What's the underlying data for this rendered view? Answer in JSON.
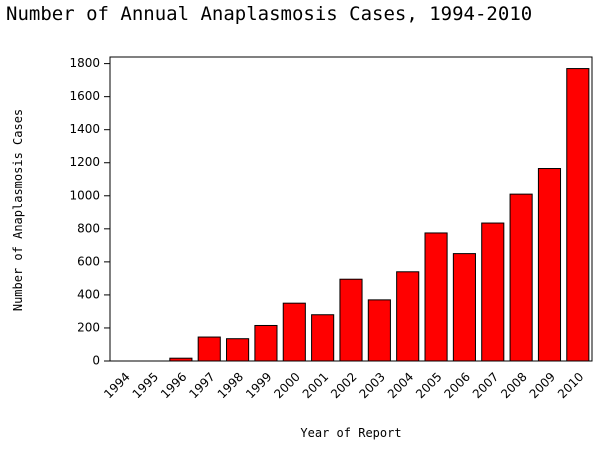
{
  "chart_data": {
    "type": "bar",
    "title": "Number of Annual Anaplasmosis Cases, 1994-2010",
    "x_label": "Year of Report",
    "y_label": "Number of Anaplasmosis Cases",
    "categories": [
      "1994",
      "1995",
      "1996",
      "1997",
      "1998",
      "1999",
      "2000",
      "2001",
      "2002",
      "2003",
      "2004",
      "2005",
      "2006",
      "2007",
      "2008",
      "2009",
      "2010"
    ],
    "values": [
      0,
      0,
      17,
      145,
      135,
      215,
      350,
      280,
      495,
      370,
      540,
      775,
      650,
      835,
      1010,
      1165,
      1770
    ],
    "color": "#ff0000",
    "ylim": [
      0,
      1840
    ],
    "yticks": [
      0,
      200,
      400,
      600,
      800,
      1000,
      1200,
      1400,
      1600,
      1800
    ],
    "grid": false
  }
}
